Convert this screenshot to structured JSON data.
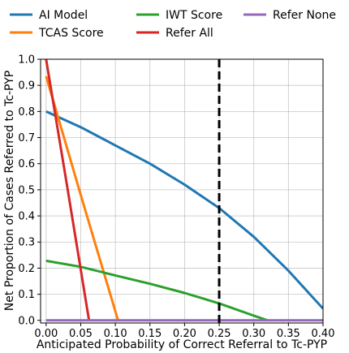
{
  "chart_data": {
    "type": "line",
    "title": "",
    "xlabel": "Anticipated Probability of Correct Referral to Tc-PYP",
    "ylabel": "Net Proportion of Cases Referred to Tc-PYP",
    "xlim": [
      -0.008,
      0.4
    ],
    "ylim": [
      -0.01,
      1.0
    ],
    "x_ticks": [
      "0.00",
      "0.05",
      "0.10",
      "0.15",
      "0.20",
      "0.25",
      "0.30",
      "0.35",
      "0.40"
    ],
    "y_ticks": [
      "0.0",
      "0.1",
      "0.2",
      "0.3",
      "0.4",
      "0.5",
      "0.6",
      "0.7",
      "0.8",
      "0.9",
      "1.0"
    ],
    "grid": true,
    "legend": "top, above plot, 3 columns",
    "reference_line": {
      "x": 0.25,
      "style": "dashed",
      "color": "#000000"
    },
    "series": [
      {
        "name": "AI Model",
        "color": "#1f77b4",
        "x": [
          0.0,
          0.05,
          0.1,
          0.15,
          0.2,
          0.25,
          0.3,
          0.35,
          0.4
        ],
        "y": [
          0.8,
          0.74,
          0.67,
          0.6,
          0.52,
          0.43,
          0.32,
          0.19,
          0.045
        ]
      },
      {
        "name": "TCAS Score",
        "color": "#ff7f0e",
        "x": [
          0.0,
          0.05,
          0.1,
          0.104
        ],
        "y": [
          0.935,
          0.48,
          0.035,
          0.0
        ]
      },
      {
        "name": "IWT Score",
        "color": "#2ca02c",
        "x": [
          0.0,
          0.05,
          0.1,
          0.15,
          0.2,
          0.25,
          0.3,
          0.32
        ],
        "y": [
          0.228,
          0.205,
          0.172,
          0.14,
          0.105,
          0.065,
          0.018,
          0.0
        ]
      },
      {
        "name": "Refer All",
        "color": "#d62728",
        "x": [
          0.0,
          0.03,
          0.062
        ],
        "y": [
          1.0,
          0.52,
          0.0
        ]
      },
      {
        "name": "Refer None",
        "color": "#9467bd",
        "x": [
          0.0,
          0.4
        ],
        "y": [
          0.0,
          0.0
        ]
      }
    ]
  }
}
